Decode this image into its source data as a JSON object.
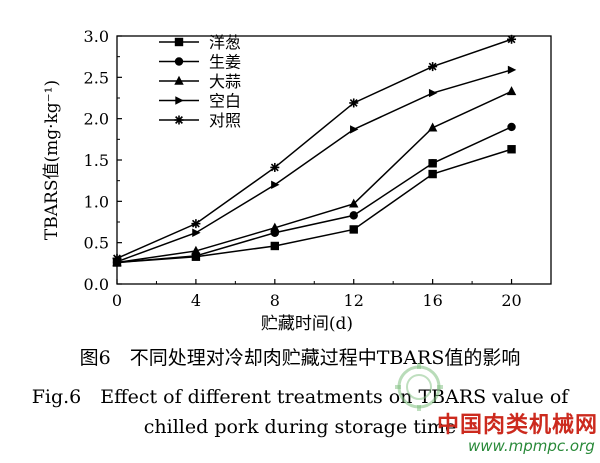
{
  "chart_data": {
    "type": "line",
    "x": [
      0,
      4,
      8,
      12,
      16,
      20
    ],
    "xlabel": "贮藏时间(d)",
    "ylabel": "TBARS值(mg·kg⁻¹)",
    "xlim": [
      0,
      22
    ],
    "ylim": [
      0,
      3.0
    ],
    "xticks": [
      "0",
      "4",
      "8",
      "12",
      "16",
      "20"
    ],
    "yticks": [
      "0.0",
      "0.5",
      "1.0",
      "1.5",
      "2.0",
      "2.5",
      "3.0"
    ],
    "grid": false,
    "legend_position": "top-left",
    "series": [
      {
        "name": "洋葱",
        "marker": "square",
        "values": [
          0.26,
          0.33,
          0.46,
          0.66,
          1.33,
          1.63
        ]
      },
      {
        "name": "洋葱",
        "marker": "square",
        "values": [
          null,
          null,
          null,
          null,
          1.46,
          null
        ]
      },
      {
        "name": "生姜",
        "marker": "circle",
        "values": [
          0.26,
          0.34,
          0.62,
          0.83,
          1.46,
          1.9
        ]
      },
      {
        "name": "大蒜",
        "marker": "triangle",
        "values": [
          0.26,
          0.4,
          0.68,
          0.97,
          1.89,
          2.33
        ]
      },
      {
        "name": "空白",
        "marker": "arrow",
        "values": [
          0.27,
          0.62,
          1.2,
          1.87,
          2.31,
          2.59
        ]
      },
      {
        "name": "对照",
        "marker": "star",
        "values": [
          0.31,
          0.73,
          1.41,
          2.19,
          2.63,
          2.96
        ]
      }
    ]
  },
  "caption": {
    "cn": "图6　不同处理对冷却肉贮藏过程中TBARS值的影响",
    "en_line1": "Fig.6　Effect of different treatments on TBARS value of",
    "en_line2": "chilled pork during storage time"
  },
  "watermark": {
    "site_name": "中国肉类机械网",
    "url": "www.mpmpc.org"
  },
  "colors": {
    "line": "#000000",
    "watermark_red": "#cc2a1e",
    "watermark_green": "#2a8a3a"
  }
}
